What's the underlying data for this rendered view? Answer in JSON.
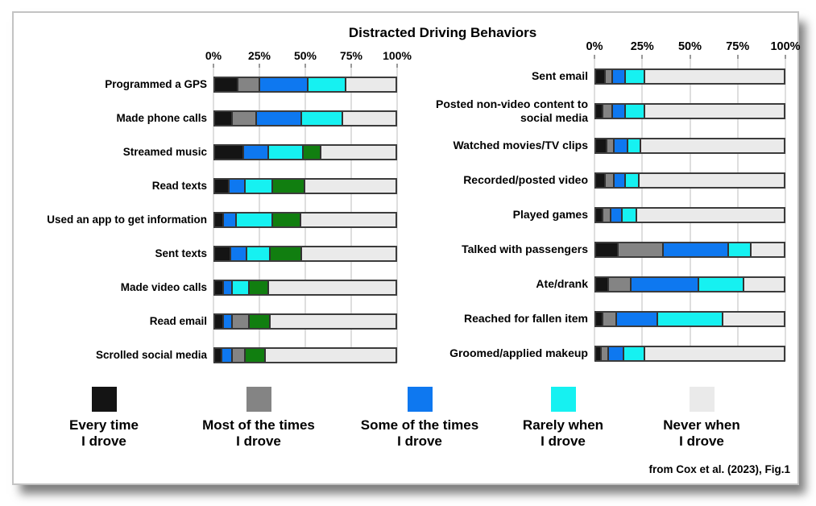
{
  "title": "Distracted Driving Behaviors",
  "attribution": "from Cox et al. (2023), Fig.1",
  "axis": {
    "ticks": [
      "0%",
      "25%",
      "50%",
      "75%",
      "100%"
    ],
    "positions": [
      0,
      25,
      50,
      75,
      100
    ]
  },
  "colors": {
    "every": "#141414",
    "most": "#848484",
    "some": "#0e78f0",
    "rarely": "#16f1f1",
    "never": "#eaeaea",
    "green": "#117e10"
  },
  "legend": [
    {
      "key": "every",
      "label": "Every time\nI drove"
    },
    {
      "key": "most",
      "label": "Most of the times\nI drove"
    },
    {
      "key": "some",
      "label": "Some of the times\nI drove"
    },
    {
      "key": "rarely",
      "label": "Rarely when\nI drove"
    },
    {
      "key": "never",
      "label": "Never when\nI drove"
    }
  ],
  "chart_data": {
    "type": "bar",
    "variant": "horizontal-stacked",
    "units": "percent of respondents",
    "axis_range": [
      0,
      100
    ],
    "grid": true,
    "legend_position": "bottom",
    "panels": [
      {
        "side": "left",
        "rows": [
          {
            "label": "Programmed a GPS",
            "segments": [
              [
                "every",
                13
              ],
              [
                "most",
                12
              ],
              [
                "some",
                27
              ],
              [
                "rarely",
                21
              ],
              [
                "never",
                27
              ]
            ]
          },
          {
            "label": "Made phone calls",
            "segments": [
              [
                "every",
                10
              ],
              [
                "most",
                13
              ],
              [
                "some",
                25
              ],
              [
                "rarely",
                23
              ],
              [
                "never",
                29
              ]
            ]
          },
          {
            "label": "Streamed music",
            "segments": [
              [
                "every",
                16
              ],
              [
                "some",
                14
              ],
              [
                "rarely",
                19
              ],
              [
                "green",
                10
              ],
              [
                "never",
                41
              ]
            ]
          },
          {
            "label": "Read texts",
            "segments": [
              [
                "every",
                8
              ],
              [
                "some",
                9
              ],
              [
                "rarely",
                15
              ],
              [
                "green",
                18
              ],
              [
                "never",
                50
              ]
            ]
          },
          {
            "label": "Used an app to get information",
            "segments": [
              [
                "every",
                5
              ],
              [
                "some",
                7
              ],
              [
                "rarely",
                20
              ],
              [
                "green",
                16
              ],
              [
                "never",
                52
              ]
            ]
          },
          {
            "label": "Sent texts",
            "segments": [
              [
                "every",
                9
              ],
              [
                "some",
                9
              ],
              [
                "rarely",
                13
              ],
              [
                "green",
                17
              ],
              [
                "never",
                52
              ]
            ]
          },
          {
            "label": "Made video calls",
            "segments": [
              [
                "every",
                5
              ],
              [
                "some",
                5
              ],
              [
                "rarely",
                9
              ],
              [
                "green",
                11
              ],
              [
                "never",
                70
              ]
            ]
          },
          {
            "label": "Read email",
            "segments": [
              [
                "every",
                5
              ],
              [
                "some",
                5
              ],
              [
                "most",
                9
              ],
              [
                "green",
                12
              ],
              [
                "never",
                69
              ]
            ]
          },
          {
            "label": "Scrolled social media",
            "segments": [
              [
                "every",
                4
              ],
              [
                "some",
                6
              ],
              [
                "most",
                7
              ],
              [
                "green",
                11
              ],
              [
                "never",
                72
              ]
            ]
          }
        ]
      },
      {
        "side": "right",
        "rows": [
          {
            "label": "Sent email",
            "segments": [
              [
                "every",
                5
              ],
              [
                "most",
                4
              ],
              [
                "some",
                7
              ],
              [
                "rarely",
                10
              ],
              [
                "never",
                74
              ]
            ]
          },
          {
            "label": "Posted non-video content to social media",
            "segments": [
              [
                "every",
                4
              ],
              [
                "most",
                5
              ],
              [
                "some",
                7
              ],
              [
                "rarely",
                10
              ],
              [
                "never",
                74
              ]
            ]
          },
          {
            "label": "Watched movies/TV clips",
            "segments": [
              [
                "every",
                6
              ],
              [
                "most",
                4
              ],
              [
                "some",
                7
              ],
              [
                "rarely",
                7
              ],
              [
                "never",
                76
              ]
            ]
          },
          {
            "label": "Recorded/posted video",
            "segments": [
              [
                "every",
                5
              ],
              [
                "most",
                5
              ],
              [
                "some",
                6
              ],
              [
                "rarely",
                7
              ],
              [
                "never",
                77
              ]
            ]
          },
          {
            "label": "Played games",
            "segments": [
              [
                "every",
                4
              ],
              [
                "most",
                4
              ],
              [
                "some",
                6
              ],
              [
                "rarely",
                8
              ],
              [
                "never",
                78
              ]
            ]
          },
          {
            "label": "Talked with passengers",
            "segments": [
              [
                "every",
                12
              ],
              [
                "most",
                24
              ],
              [
                "some",
                35
              ],
              [
                "rarely",
                12
              ],
              [
                "never",
                17
              ]
            ]
          },
          {
            "label": "Ate/drank",
            "segments": [
              [
                "every",
                7
              ],
              [
                "most",
                12
              ],
              [
                "some",
                36
              ],
              [
                "rarely",
                24
              ],
              [
                "never",
                21
              ]
            ]
          },
          {
            "label": "Reached for fallen item",
            "segments": [
              [
                "every",
                4
              ],
              [
                "most",
                7
              ],
              [
                "some",
                22
              ],
              [
                "rarely",
                35
              ],
              [
                "never",
                32
              ]
            ]
          },
          {
            "label": "Groomed/applied makeup",
            "segments": [
              [
                "every",
                3
              ],
              [
                "most",
                4
              ],
              [
                "some",
                8
              ],
              [
                "rarely",
                11
              ],
              [
                "never",
                74
              ]
            ]
          }
        ]
      }
    ]
  }
}
